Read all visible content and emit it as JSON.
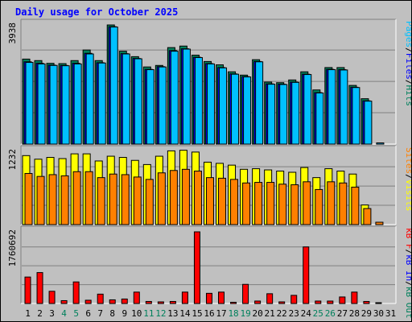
{
  "title": "Daily usage for October 2025",
  "colors": {
    "hits": "#00805c",
    "files": "#0000ff",
    "pages": "#00c0ff",
    "visits": "#ffff00",
    "sites": "#ff8000",
    "kb_f": "#ff0000",
    "kb_in": "#0000ff",
    "kb_out": "#00805c",
    "weekend_day": "#00805c",
    "weekday_day": "#000000"
  },
  "legends": {
    "top": [
      {
        "text": "Pages",
        "color": "#00c0ff"
      },
      {
        "text": "/",
        "color": "#000000"
      },
      {
        "text": "Files",
        "color": "#0000ff"
      },
      {
        "text": "/",
        "color": "#000000"
      },
      {
        "text": "Hits",
        "color": "#00805c"
      }
    ],
    "mid": [
      {
        "text": "Sites",
        "color": "#ff8000"
      },
      {
        "text": "/",
        "color": "#000000"
      },
      {
        "text": "Visits",
        "color": "#ffff00"
      }
    ],
    "bot": [
      {
        "text": "kB F",
        "color": "#ff0000"
      },
      {
        "text": "/",
        "color": "#000000"
      },
      {
        "text": "kB In",
        "color": "#0000ff"
      },
      {
        "text": "/",
        "color": "#000000"
      },
      {
        "text": "kB Out",
        "color": "#00805c"
      }
    ]
  },
  "chart_data": {
    "type": "bar",
    "title": "Daily usage for October 2025",
    "days": [
      "1",
      "2",
      "3",
      "4",
      "5",
      "6",
      "7",
      "8",
      "9",
      "10",
      "11",
      "12",
      "13",
      "14",
      "15",
      "16",
      "17",
      "18",
      "19",
      "20",
      "21",
      "22",
      "23",
      "24",
      "25",
      "26",
      "27",
      "28",
      "29",
      "30",
      "31"
    ],
    "weekend_days": [
      "4",
      "5",
      "11",
      "12",
      "18",
      "19",
      "25",
      "26"
    ],
    "panels": [
      {
        "name": "top",
        "ymax_label": "3938",
        "ymax": 3938,
        "series": [
          {
            "name": "Hits",
            "values": [
              2810,
              2760,
              2670,
              2660,
              2760,
              3110,
              2760,
              3938,
              3070,
              2890,
              2550,
              2600,
              3190,
              3240,
              2940,
              2730,
              2620,
              2390,
              2280,
              2790,
              2050,
              2030,
              2120,
              2390,
              1790,
              2530,
              2530,
              1940,
              1500,
              0,
              0
            ]
          },
          {
            "name": "Files",
            "values": [
              2720,
              2670,
              2610,
              2600,
              2670,
              3000,
              2690,
              3880,
              2990,
              2830,
              2470,
              2560,
              3090,
              3150,
              2870,
              2660,
              2530,
              2320,
              2230,
              2730,
              1990,
              1980,
              2050,
              2310,
              1700,
              2470,
              2460,
              1880,
              1430,
              0,
              0
            ]
          },
          {
            "name": "Pages",
            "values": [
              2700,
              2650,
              2600,
              2590,
              2650,
              2980,
              2680,
              3870,
              2980,
              2820,
              2460,
              2550,
              3070,
              3140,
              2860,
              2650,
              2520,
              2310,
              2220,
              2720,
              1980,
              1970,
              2040,
              2300,
              1690,
              2460,
              2450,
              1870,
              1420,
              40,
              0
            ]
          }
        ]
      },
      {
        "name": "mid",
        "ymax_label": "1232",
        "ymax": 1232,
        "series": [
          {
            "name": "Visits",
            "values": [
              1160,
              1100,
              1130,
              1110,
              1190,
              1190,
              1070,
              1150,
              1130,
              1080,
              1010,
              1150,
              1240,
              1250,
              1220,
              1050,
              1030,
              1000,
              930,
              940,
              920,
              900,
              880,
              960,
              790,
              940,
              900,
              850,
              330,
              0,
              0
            ]
          },
          {
            "name": "Sites",
            "values": [
              860,
              810,
              840,
              820,
              890,
              890,
              790,
              850,
              840,
              800,
              760,
              870,
              910,
              930,
              900,
              790,
              780,
              760,
              700,
              710,
              710,
              680,
              670,
              720,
              590,
              720,
              700,
              630,
              270,
              40,
              0
            ]
          }
        ]
      },
      {
        "name": "bot",
        "ymax_label": "1760692",
        "ymax": 1760692,
        "series": [
          {
            "name": "kB F",
            "values": [
              650000,
              760000,
              300000,
              70000,
              530000,
              80000,
              230000,
              90000,
              110000,
              280000,
              50000,
              40000,
              50000,
              280000,
              1760692,
              250000,
              280000,
              30000,
              470000,
              60000,
              240000,
              40000,
              200000,
              1390000,
              60000,
              60000,
              160000,
              280000,
              50000,
              15000,
              0
            ]
          }
        ]
      }
    ]
  }
}
